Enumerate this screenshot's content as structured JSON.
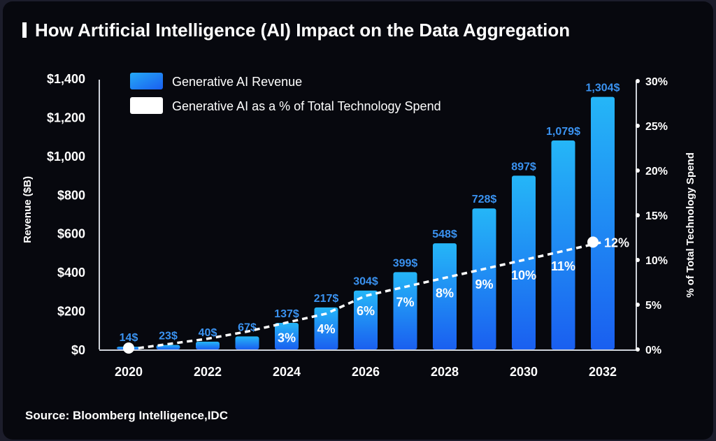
{
  "title": "How Artificial Intelligence (AI) Impact on the Data Aggregation",
  "source": "Source: Bloomberg Intelligence,IDC",
  "chart_data": {
    "type": "bar+line",
    "title": "How Artificial Intelligence (AI) Impact on the Data Aggregation",
    "categories": [
      "2020",
      "2021",
      "2022",
      "2023",
      "2024",
      "2025",
      "2026",
      "2027",
      "2028",
      "2029",
      "2030",
      "2031",
      "2032"
    ],
    "x_tick_labels": [
      "2020",
      "2022",
      "2024",
      "2026",
      "2028",
      "2030",
      "2032"
    ],
    "series": [
      {
        "name": "Generative AI Revenue",
        "type": "bar",
        "axis": "left",
        "color": "#1e8ff5",
        "values": [
          14,
          23,
          40,
          67,
          137,
          217,
          304,
          399,
          548,
          728,
          897,
          1079,
          1304
        ],
        "labels": [
          "14$",
          "23$",
          "40$",
          "67$",
          "137$",
          "217$",
          "304$",
          "399$",
          "548$",
          "728$",
          "897$",
          "1,079$",
          "1,304$"
        ]
      },
      {
        "name": "Generative AI as a % of Total Technology Spend",
        "type": "line",
        "axis": "right",
        "color": "#ffffff",
        "style": "dashed",
        "values": [
          0,
          0.6,
          1.2,
          2,
          3,
          4,
          6,
          7,
          8,
          9,
          10,
          11,
          12
        ],
        "labels": [
          "",
          "",
          "",
          "",
          "3%",
          "4%",
          "6%",
          "7%",
          "8%",
          "9%",
          "10%",
          "11%",
          "12%"
        ]
      }
    ],
    "ylabel": "Revenue ($B)",
    "ylim": [
      0,
      1400
    ],
    "y_tick_labels": [
      "$0",
      "$200",
      "$400",
      "$600",
      "$800",
      "$1,000",
      "$1,200",
      "$1,400"
    ],
    "y_ticks": [
      0,
      200,
      400,
      600,
      800,
      1000,
      1200,
      1400
    ],
    "y2label": "% of Total Technology Spend",
    "y2lim": [
      0,
      30
    ],
    "y2_tick_labels": [
      "0%",
      "5%",
      "10%",
      "15%",
      "20%",
      "25%",
      "30%"
    ],
    "y2_ticks": [
      0,
      5,
      10,
      15,
      20,
      25,
      30
    ],
    "legend": "top-left",
    "grid": false
  }
}
